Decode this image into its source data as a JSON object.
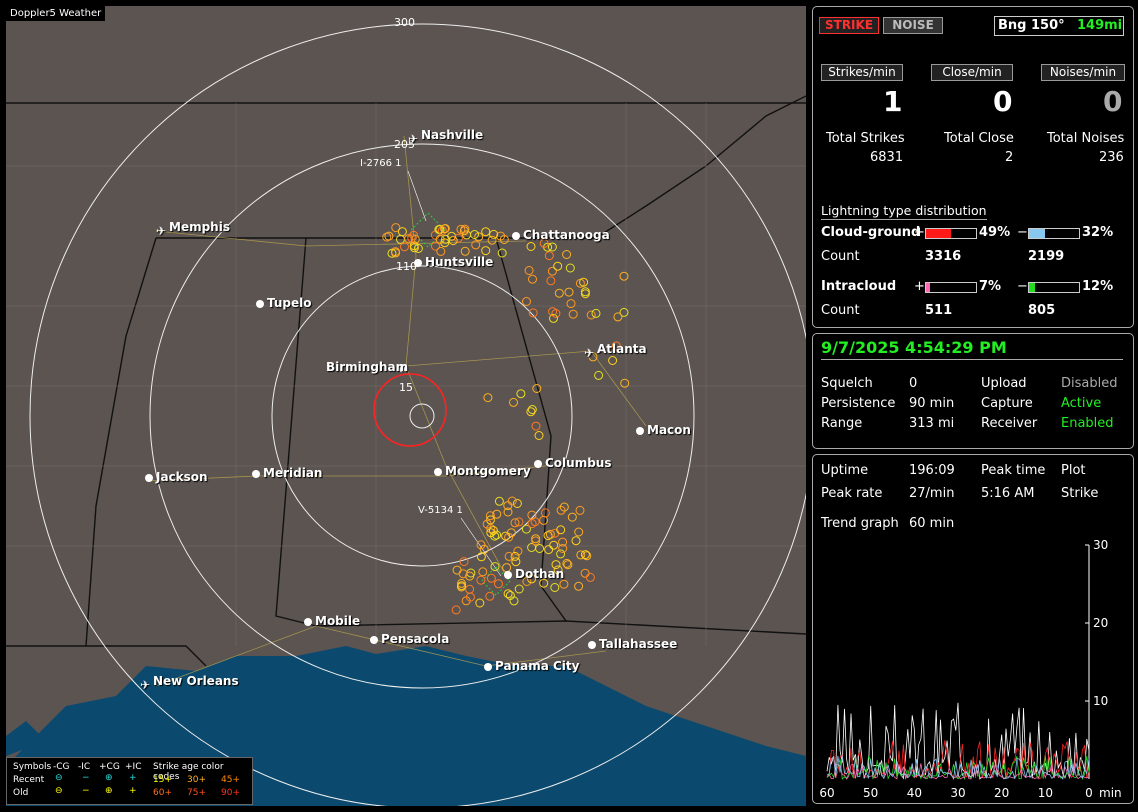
{
  "app": {
    "brand": "Doppler5 Weather"
  },
  "map": {
    "cities": [
      {
        "name": "Nashville",
        "airport": true
      },
      {
        "name": "Memphis",
        "airport": true
      },
      {
        "name": "Chattanooga",
        "airport": false
      },
      {
        "name": "Huntsville",
        "airport": false
      },
      {
        "name": "Tupelo",
        "airport": false
      },
      {
        "name": "Atlanta",
        "airport": true
      },
      {
        "name": "Birmingham",
        "airport": false
      },
      {
        "name": "Macon",
        "airport": false
      },
      {
        "name": "Jackson",
        "airport": false
      },
      {
        "name": "Meridian",
        "airport": false
      },
      {
        "name": "Montgomery",
        "airport": false
      },
      {
        "name": "Columbus",
        "airport": false
      },
      {
        "name": "Dothan",
        "airport": false
      },
      {
        "name": "Mobile",
        "airport": false
      },
      {
        "name": "Pensacola",
        "airport": false
      },
      {
        "name": "Tallahassee",
        "airport": false
      },
      {
        "name": "Panama City",
        "airport": false
      },
      {
        "name": "New Orleans",
        "airport": true
      }
    ],
    "ring_labels": [
      "300",
      "205",
      "110",
      "15"
    ],
    "tracks": [
      "I-2766 1",
      "V-5134 1"
    ],
    "legend": {
      "symbols_label": "Symbols",
      "headers": [
        "-CG",
        "-IC",
        "+CG",
        "+IC"
      ],
      "age_label": "Strike age color codes",
      "recent_label": "Recent",
      "old_label": "Old",
      "recent_ages": [
        "15+",
        "30+",
        "45+"
      ],
      "old_ages": [
        "60+",
        "75+",
        "90+"
      ]
    }
  },
  "status": {
    "strike_label": "STRIKE",
    "noise_label": "NOISE",
    "bearing_label": "Bng 150°",
    "bearing_distance": "149mi",
    "rate_labels": [
      "Strikes/min",
      "Close/min",
      "Noises/min"
    ],
    "rate_values": [
      "1",
      "0",
      "0"
    ],
    "total_labels": [
      "Total Strikes",
      "Total Close",
      "Total Noises"
    ],
    "total_values": [
      "6831",
      "2",
      "236"
    ]
  },
  "distribution": {
    "title": "Lightning type distribution",
    "cloud_ground_label": "Cloud-ground",
    "intracloud_label": "Intracloud",
    "count_label": "Count",
    "cg_pos_pct": "49%",
    "cg_neg_pct": "32%",
    "cg_pos_count": "3316",
    "cg_neg_count": "2199",
    "ic_pos_pct": "7%",
    "ic_neg_pct": "12%",
    "ic_pos_count": "511",
    "ic_neg_count": "805",
    "cg_pos_fill": 0.49,
    "cg_neg_fill": 0.32,
    "ic_pos_fill": 0.07,
    "ic_neg_fill": 0.12
  },
  "settings": {
    "datetime": "9/7/2025 4:54:29 PM",
    "squelch_label": "Squelch",
    "squelch_value": "0",
    "persistence_label": "Persistence",
    "persistence_value": "90 min",
    "range_label": "Range",
    "range_value": "313 mi",
    "upload_label": "Upload",
    "upload_value": "Disabled",
    "capture_label": "Capture",
    "capture_value": "Active",
    "receiver_label": "Receiver",
    "receiver_value": "Enabled"
  },
  "stats": {
    "uptime_label": "Uptime",
    "uptime_value": "196:09",
    "peak_time_label": "Peak time",
    "peak_time_value": "5:16 AM",
    "plot_label": "Plot",
    "plot_value": "Strike",
    "peak_rate_label": "Peak rate",
    "peak_rate_value": "27/min",
    "trend_label": "Trend graph",
    "trend_value": "60 min"
  },
  "chart_data": {
    "type": "line",
    "x_ticks": [
      "60",
      "50",
      "40",
      "30",
      "20",
      "10",
      "0"
    ],
    "x_unit": "min",
    "y_ticks": [
      "30",
      "20",
      "10"
    ],
    "xlim": [
      60,
      0
    ],
    "ylim": [
      0,
      30
    ]
  },
  "colors": {
    "accent_green": "#22ee22",
    "strike_red": "#ff2222",
    "map_land": "#5b5451",
    "map_water": "#0b4a6e"
  }
}
